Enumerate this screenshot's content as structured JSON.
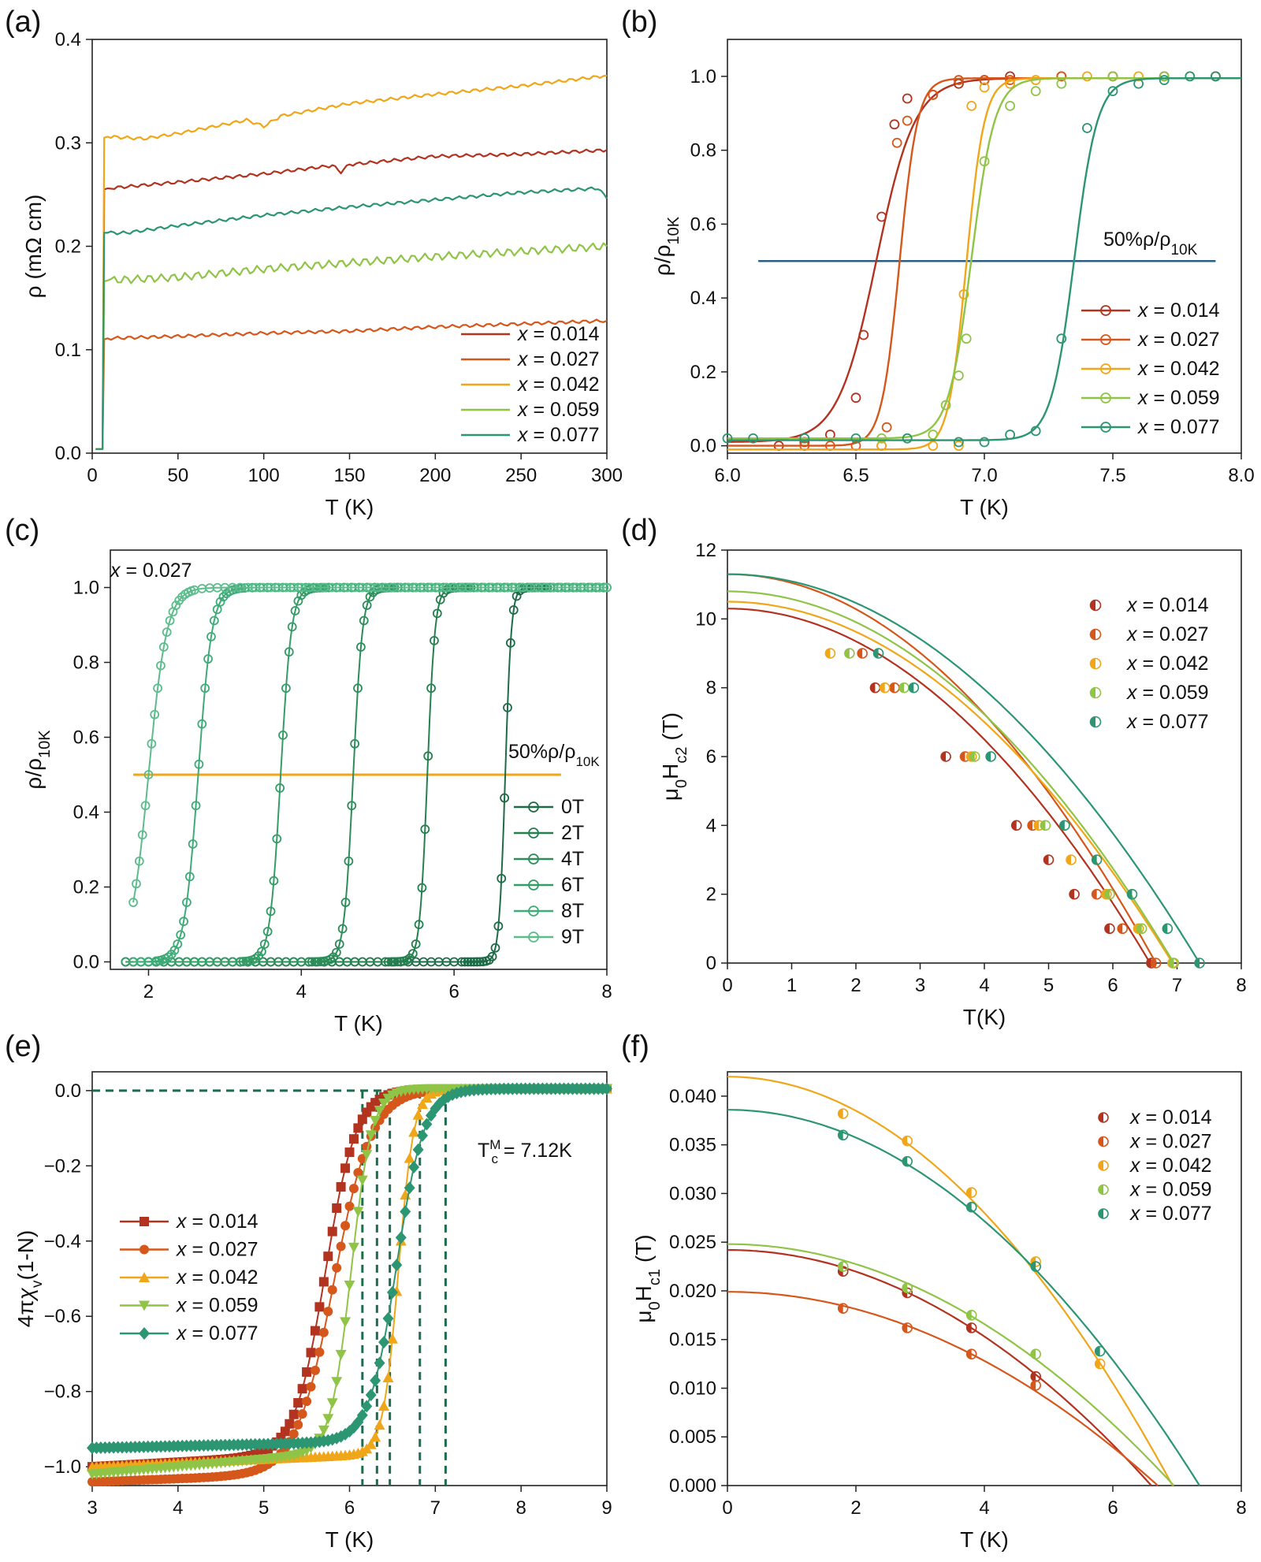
{
  "figure": {
    "panel_labels": [
      "(a)",
      "(b)",
      "(c)",
      "(d)",
      "(e)",
      "(f)"
    ],
    "series_colors": {
      "x0014": "#b2331f",
      "x0027": "#d5571b",
      "x0042": "#f0a619",
      "x0059": "#8fc447",
      "x0077": "#2c9672",
      "field_0T": "#1e6b47",
      "field_2T": "#25804f",
      "field_4T": "#2d8d5a",
      "field_6T": "#349c66",
      "field_8T": "#3fab78",
      "field_9T": "#5cbc8c",
      "ref_line_b": "#2b5f86",
      "ref_line_c": "#f0a619",
      "dash_e": "#1f6b4c"
    }
  },
  "chart_data": [
    {
      "panel": "(a)",
      "type": "line",
      "title": "",
      "xlabel": "T (K)",
      "ylabel": "ρ (mΩ cm)",
      "xlim": [
        0,
        300
      ],
      "ylim": [
        0,
        0.4
      ],
      "xticks": [
        0,
        50,
        100,
        150,
        200,
        250,
        300
      ],
      "yticks": [
        0.0,
        0.1,
        0.2,
        0.3,
        0.4
      ],
      "legend": "bottom-right",
      "series": [
        {
          "name": "x = 0.014",
          "x": [
            2,
            6,
            7,
            9,
            50,
            100,
            140,
            145,
            150,
            200,
            250,
            300
          ],
          "y": [
            0.004,
            0.004,
            0.255,
            0.256,
            0.262,
            0.27,
            0.278,
            0.272,
            0.279,
            0.287,
            0.289,
            0.293
          ]
        },
        {
          "name": "x = 0.027",
          "x": [
            2,
            6,
            7,
            9,
            50,
            100,
            150,
            200,
            250,
            300
          ],
          "y": [
            0.004,
            0.004,
            0.11,
            0.111,
            0.113,
            0.116,
            0.118,
            0.122,
            0.125,
            0.128
          ]
        },
        {
          "name": "x = 0.042",
          "x": [
            2,
            6,
            7,
            9,
            30,
            50,
            90,
            100,
            110,
            150,
            200,
            250,
            300
          ],
          "y": [
            0.004,
            0.004,
            0.305,
            0.306,
            0.304,
            0.309,
            0.322,
            0.316,
            0.326,
            0.338,
            0.347,
            0.355,
            0.365
          ]
        },
        {
          "name": "x = 0.059",
          "x": [
            2,
            6,
            7,
            9,
            50,
            100,
            150,
            200,
            250,
            300
          ],
          "y": [
            0.004,
            0.004,
            0.166,
            0.167,
            0.17,
            0.178,
            0.184,
            0.19,
            0.195,
            0.2
          ]
        },
        {
          "name": "x = 0.077",
          "x": [
            2,
            6,
            7,
            9,
            20,
            50,
            100,
            150,
            200,
            250,
            295,
            300
          ],
          "y": [
            0.004,
            0.004,
            0.213,
            0.213,
            0.213,
            0.22,
            0.23,
            0.238,
            0.245,
            0.252,
            0.256,
            0.246
          ]
        }
      ]
    },
    {
      "panel": "(b)",
      "type": "line",
      "xlabel": "T (K)",
      "ylabel": "ρ/ρ10K",
      "xlim": [
        6.0,
        8.0
      ],
      "ylim": [
        -0.02,
        1.1
      ],
      "xticks": [
        6.0,
        6.5,
        7.0,
        7.5,
        8.0
      ],
      "yticks": [
        0.0,
        0.2,
        0.4,
        0.6,
        0.8,
        1.0
      ],
      "legend": "bottom-right",
      "annotations": [
        {
          "text": "50%ρ/ρ10K",
          "x": 7.5,
          "y": 0.55
        }
      ],
      "reference_line": {
        "y": 0.5,
        "x_range": [
          6.12,
          7.9
        ]
      },
      "series": [
        {
          "name": "x = 0.014",
          "tc": 6.58,
          "width": 0.075,
          "low": 0.01,
          "points_x": [
            6.2,
            6.3,
            6.4,
            6.5,
            6.53,
            6.6,
            6.65,
            6.7,
            6.8,
            6.9,
            7.0,
            7.1,
            7.3,
            7.5,
            7.7,
            7.9
          ],
          "points_y": [
            0.0,
            0.01,
            0.03,
            0.13,
            0.3,
            0.62,
            0.87,
            0.94,
            0.95,
            0.98,
            0.99,
            1.0,
            1.0,
            1.0,
            1.0,
            1.0
          ]
        },
        {
          "name": "x = 0.027",
          "tc": 6.67,
          "width": 0.035,
          "low": 0.0,
          "points_x": [
            6.3,
            6.4,
            6.5,
            6.6,
            6.62,
            6.66,
            6.7,
            6.8,
            6.9,
            7.0,
            7.1,
            7.3,
            7.5,
            7.7,
            7.9
          ],
          "points_y": [
            0.0,
            0.0,
            0.0,
            0.0,
            0.05,
            0.82,
            0.88,
            0.95,
            0.99,
            0.99,
            0.99,
            1.0,
            1.0,
            1.0,
            1.0
          ]
        },
        {
          "name": "x = 0.042",
          "tc": 6.93,
          "width": 0.035,
          "low": -0.01,
          "points_x": [
            6.6,
            6.8,
            6.9,
            6.92,
            6.95,
            7.0,
            7.1,
            7.2,
            7.4,
            7.6,
            7.8
          ],
          "points_y": [
            0.0,
            0.0,
            0.0,
            0.41,
            0.92,
            0.97,
            0.98,
            0.99,
            1.0,
            1.0,
            1.0
          ]
        },
        {
          "name": "x = 0.059",
          "tc": 6.95,
          "width": 0.045,
          "low": 0.02,
          "points_x": [
            6.6,
            6.7,
            6.8,
            6.85,
            6.9,
            6.93,
            7.0,
            7.1,
            7.2,
            7.3,
            7.5,
            7.7
          ],
          "points_y": [
            0.02,
            0.02,
            0.03,
            0.11,
            0.19,
            0.29,
            0.77,
            0.92,
            0.96,
            0.98,
            1.0,
            1.0
          ]
        },
        {
          "name": "x = 0.077",
          "tc": 7.35,
          "width": 0.045,
          "low": 0.015,
          "points_x": [
            6.0,
            6.1,
            6.3,
            6.5,
            6.7,
            6.9,
            7.0,
            7.1,
            7.2,
            7.3,
            7.4,
            7.5,
            7.6,
            7.7,
            7.8,
            7.9
          ],
          "points_y": [
            0.02,
            0.02,
            0.02,
            0.02,
            0.02,
            0.01,
            0.01,
            0.03,
            0.04,
            0.29,
            0.86,
            0.96,
            0.98,
            0.99,
            1.0,
            1.0
          ]
        }
      ]
    },
    {
      "panel": "(c)",
      "type": "line",
      "xlabel": "T (K)",
      "ylabel": "ρ/ρ10K",
      "xlim": [
        1.5,
        8
      ],
      "ylim": [
        -0.02,
        1.1
      ],
      "xticks": [
        2,
        4,
        6,
        8
      ],
      "yticks": [
        0.0,
        0.2,
        0.4,
        0.6,
        0.8,
        1.0
      ],
      "legend": "bottom-right",
      "annotations": [
        {
          "text": "x = 0.027",
          "x": 1.8,
          "y": 1.05
        },
        {
          "text": "50%ρ/ρ10K",
          "x": 7.3,
          "y": 0.55
        }
      ],
      "reference_line": {
        "y": 0.5,
        "x_range": [
          1.8,
          7.4
        ]
      },
      "series": [
        {
          "name": "0T",
          "tc": 6.67,
          "width": 0.04
        },
        {
          "name": "2T",
          "tc": 5.65,
          "width": 0.05
        },
        {
          "name": "4T",
          "tc": 4.68,
          "width": 0.06
        },
        {
          "name": "6T",
          "tc": 3.73,
          "width": 0.07
        },
        {
          "name": "8T",
          "tc": 2.65,
          "width": 0.09
        },
        {
          "name": "9T",
          "tc": 2.0,
          "width": 0.12
        }
      ]
    },
    {
      "panel": "(d)",
      "type": "scatter",
      "xlabel": "T(K)",
      "ylabel": "μ0Hc2 (T)",
      "xlim": [
        0,
        8
      ],
      "ylim": [
        0,
        12
      ],
      "xticks": [
        0,
        1,
        2,
        3,
        4,
        5,
        6,
        7,
        8
      ],
      "yticks": [
        0,
        2,
        4,
        6,
        8,
        10,
        12
      ],
      "legend": "top-right",
      "series": [
        {
          "name": "x = 0.014",
          "hc0": 10.3,
          "tc": 6.58,
          "points": [
            [
              2.3,
              8
            ],
            [
              3.4,
              6
            ],
            [
              4.5,
              4
            ],
            [
              5.0,
              3
            ],
            [
              5.4,
              2
            ],
            [
              5.95,
              1
            ],
            [
              6.6,
              0
            ]
          ]
        },
        {
          "name": "x = 0.027",
          "hc0": 11.3,
          "tc": 6.67,
          "points": [
            [
              2.1,
              9
            ],
            [
              2.6,
              8
            ],
            [
              3.7,
              6
            ],
            [
              4.75,
              4
            ],
            [
              5.75,
              2
            ],
            [
              6.15,
              1
            ],
            [
              6.67,
              0
            ]
          ]
        },
        {
          "name": "x = 0.042",
          "hc0": 10.5,
          "tc": 6.93,
          "points": [
            [
              1.6,
              9
            ],
            [
              2.45,
              8
            ],
            [
              3.8,
              6
            ],
            [
              4.85,
              4
            ],
            [
              5.35,
              3
            ],
            [
              5.9,
              2
            ],
            [
              6.4,
              1
            ],
            [
              6.93,
              0
            ]
          ]
        },
        {
          "name": "x = 0.059",
          "hc0": 10.8,
          "tc": 6.95,
          "points": [
            [
              1.9,
              9
            ],
            [
              2.75,
              8
            ],
            [
              3.85,
              6
            ],
            [
              4.95,
              4
            ],
            [
              5.95,
              2
            ],
            [
              6.45,
              1
            ],
            [
              6.95,
              0
            ]
          ]
        },
        {
          "name": "x = 0.077",
          "hc0": 11.3,
          "tc": 7.35,
          "points": [
            [
              2.35,
              9
            ],
            [
              2.9,
              8
            ],
            [
              4.1,
              6
            ],
            [
              5.25,
              4
            ],
            [
              5.75,
              3
            ],
            [
              6.3,
              2
            ],
            [
              6.85,
              1
            ],
            [
              7.35,
              0
            ]
          ]
        }
      ]
    },
    {
      "panel": "(e)",
      "type": "line",
      "xlabel": "T (K)",
      "ylabel": "4πχv(1-N)",
      "xlim": [
        3,
        9
      ],
      "ylim": [
        -1.05,
        0.05
      ],
      "xticks": [
        3,
        4,
        5,
        6,
        7,
        8,
        9
      ],
      "yticks": [
        0.0,
        -0.2,
        -0.4,
        -0.6,
        -0.8,
        -1.0
      ],
      "legend": "left",
      "annotations": [
        {
          "text": "T",
          "sub": "c",
          "sup": "M",
          "rest": " = 7.12K",
          "x": 7.5,
          "y": -0.17
        }
      ],
      "dashed_lines": {
        "y_zero_x_range": [
          3,
          7.12
        ],
        "vertical_x": [
          6.15,
          6.32,
          6.47,
          6.82,
          7.12
        ]
      },
      "series": [
        {
          "name": "x = 0.014",
          "marker": "square",
          "tc": 5.72,
          "width": 0.18,
          "low": -1.0,
          "lowslope": 0.012
        },
        {
          "name": "x = 0.027",
          "marker": "circle",
          "tc": 5.82,
          "width": 0.22,
          "low": -1.04,
          "lowslope": 0.008
        },
        {
          "name": "x = 0.042",
          "marker": "triangle-up",
          "tc": 6.57,
          "width": 0.09,
          "low": -1.0,
          "lowslope": 0.01
        },
        {
          "name": "x = 0.059",
          "marker": "triangle-down",
          "tc": 6.02,
          "width": 0.12,
          "low": -1.02,
          "lowslope": 0.02
        },
        {
          "name": "x = 0.077",
          "marker": "diamond",
          "tc": 6.55,
          "width": 0.16,
          "low": -0.95,
          "lowslope": 0.005
        }
      ]
    },
    {
      "panel": "(f)",
      "type": "scatter",
      "xlabel": "T (K)",
      "ylabel": "μ0Hc1 (T)",
      "xlim": [
        0,
        8
      ],
      "ylim": [
        0,
        0.0425
      ],
      "xticks": [
        0,
        2,
        4,
        6,
        8
      ],
      "yticks": [
        0.0,
        0.005,
        0.01,
        0.015,
        0.02,
        0.025,
        0.03,
        0.035,
        0.04
      ],
      "yticklabels": [
        "0.000",
        "0.005",
        "0.010",
        "0.015",
        "0.020",
        "0.025",
        "0.030",
        "0.035",
        "0.040"
      ],
      "legend": "top-right",
      "series": [
        {
          "name": "x = 0.014",
          "hc0": 0.0242,
          "tc": 6.6,
          "points": [
            [
              1.8,
              0.022
            ],
            [
              2.8,
              0.0198
            ],
            [
              3.8,
              0.0162
            ],
            [
              4.8,
              0.0112
            ]
          ]
        },
        {
          "name": "x = 0.027",
          "hc0": 0.0199,
          "tc": 6.7,
          "points": [
            [
              1.8,
              0.0182
            ],
            [
              2.8,
              0.0162
            ],
            [
              3.8,
              0.0135
            ],
            [
              4.8,
              0.0103
            ]
          ]
        },
        {
          "name": "x = 0.042",
          "hc0": 0.042,
          "tc": 6.93,
          "points": [
            [
              1.8,
              0.0382
            ],
            [
              2.8,
              0.0354
            ],
            [
              3.8,
              0.0301
            ],
            [
              4.8,
              0.023
            ],
            [
              5.8,
              0.0125
            ]
          ]
        },
        {
          "name": "x = 0.059",
          "hc0": 0.0248,
          "tc": 6.95,
          "points": [
            [
              1.8,
              0.0225
            ],
            [
              2.8,
              0.0203
            ],
            [
              3.8,
              0.0175
            ],
            [
              4.8,
              0.0135
            ]
          ]
        },
        {
          "name": "x = 0.077",
          "hc0": 0.0386,
          "tc": 7.35,
          "points": [
            [
              1.8,
              0.036
            ],
            [
              2.8,
              0.0333
            ],
            [
              3.8,
              0.0286
            ],
            [
              4.8,
              0.0225
            ],
            [
              5.8,
              0.0138
            ]
          ]
        }
      ]
    }
  ]
}
